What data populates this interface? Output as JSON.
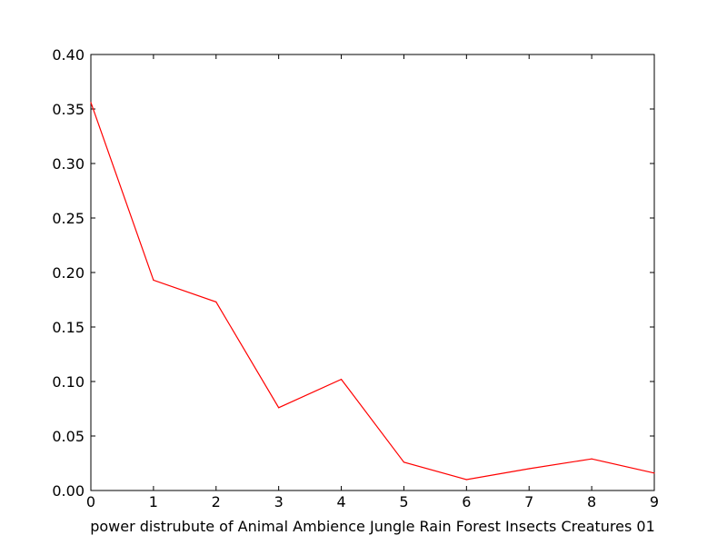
{
  "chart_data": {
    "type": "line",
    "title": "",
    "xlabel": "power distrubute of Animal Ambience Jungle Rain Forest Insects Creatures 01",
    "ylabel": "",
    "xlim": [
      0,
      9
    ],
    "ylim": [
      0.0,
      0.4
    ],
    "grid": false,
    "x_ticks": [
      "0",
      "1",
      "2",
      "3",
      "4",
      "5",
      "6",
      "7",
      "8",
      "9"
    ],
    "y_ticks": [
      "0.00",
      "0.05",
      "0.10",
      "0.15",
      "0.20",
      "0.25",
      "0.30",
      "0.35",
      "0.40"
    ],
    "series": [
      {
        "color": "#ff0000",
        "x": [
          0,
          1,
          2,
          3,
          4,
          5,
          6,
          7,
          8,
          9
        ],
        "y": [
          0.356,
          0.193,
          0.173,
          0.076,
          0.102,
          0.026,
          0.01,
          0.02,
          0.029,
          0.016
        ]
      }
    ]
  }
}
